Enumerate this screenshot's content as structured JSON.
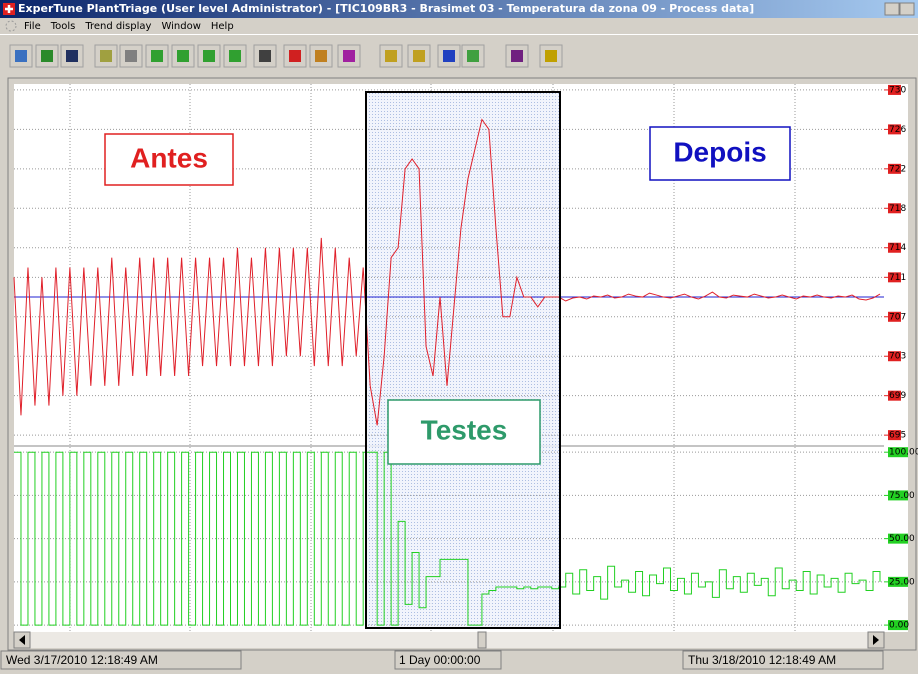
{
  "window": {
    "title": "ExperTune PlantTriage (User level Administrator) - [TIC109BR3 - Brasimet 03 - Temperatura da zona 09 - Process data]",
    "menu": [
      "File",
      "Tools",
      "Trend display",
      "Window",
      "Help"
    ]
  },
  "annotations": {
    "before": "Antes",
    "after": "Depois",
    "tests": "Testes"
  },
  "status": [
    "Wed 3/17/2010 12:18:49 AM",
    "1 Day 00:00:00",
    "Thu 3/18/2010 12:18:49 AM"
  ],
  "chart_data": [
    {
      "type": "line",
      "ylim": [
        694,
        730.5
      ],
      "yticks": [
        730,
        726,
        722,
        718,
        714,
        711,
        707,
        703,
        699,
        695
      ],
      "grid": true,
      "setpoint": 709,
      "setpoint_color": "#2020d0",
      "series": [
        {
          "color": "#e0202a",
          "values": [
            711,
            697,
            712,
            698,
            711,
            698,
            712,
            699,
            712,
            699,
            712,
            700,
            712,
            700,
            713,
            700,
            712,
            701,
            713,
            701,
            713,
            701,
            713,
            701,
            713,
            701,
            713,
            702,
            713,
            702,
            713,
            702,
            714,
            702,
            713,
            702,
            714,
            702,
            714,
            703,
            714,
            703,
            714,
            702,
            715,
            702,
            714,
            702,
            713,
            703,
            712,
            700,
            696,
            703,
            713,
            714,
            722,
            723,
            722,
            704,
            701,
            709,
            700,
            708,
            716,
            721,
            724,
            727,
            726,
            716,
            707,
            707,
            711,
            709,
            709,
            708,
            709,
            709,
            709,
            708.6,
            708.9,
            709,
            708.8,
            709.1,
            709,
            709.2,
            708.9,
            709,
            709.3,
            709.1,
            709,
            709.4,
            709.2,
            709,
            708.9,
            709.1,
            709.3,
            709,
            708.8,
            709.1,
            709.5,
            709,
            708.9,
            709.2,
            709.1,
            709,
            709.3,
            709.1,
            708.9,
            709,
            709.2,
            709,
            708.8,
            709.1,
            709,
            709.2,
            709,
            708.9,
            709.1,
            709,
            709.2,
            708.8,
            708.7,
            708.9,
            709.3
          ]
        }
      ]
    },
    {
      "type": "step",
      "ylim": [
        -4,
        103
      ],
      "yticks": [
        {
          "value": 100,
          "label": "100.00"
        },
        {
          "value": 75,
          "label": "75.00"
        },
        {
          "value": 50,
          "label": "50.00"
        },
        {
          "value": 25,
          "label": "25.00"
        },
        {
          "value": 0,
          "label": "0.00"
        }
      ],
      "grid": true,
      "series": [
        {
          "color": "#22d022",
          "values": [
            100,
            0,
            100,
            0,
            100,
            0,
            100,
            0,
            100,
            0,
            100,
            0,
            100,
            0,
            100,
            0,
            100,
            0,
            100,
            0,
            100,
            0,
            100,
            0,
            100,
            0,
            100,
            0,
            100,
            0,
            100,
            0,
            100,
            0,
            100,
            0,
            100,
            0,
            100,
            0,
            100,
            0,
            100,
            0,
            100,
            0,
            100,
            0,
            100,
            0,
            100,
            100,
            0,
            100,
            0,
            60,
            12,
            42,
            10,
            28,
            28,
            38,
            38,
            38,
            38,
            0,
            0,
            18,
            20,
            22,
            22,
            22,
            21,
            22,
            21,
            22,
            22,
            21,
            22,
            30,
            18,
            32,
            20,
            28,
            15,
            34,
            22,
            26,
            19,
            31,
            17,
            29,
            24,
            33,
            20,
            27,
            18,
            30,
            22,
            25,
            16,
            32,
            21,
            28,
            19,
            30,
            23,
            27,
            17,
            33,
            21,
            26,
            20,
            31,
            18,
            29,
            22,
            27,
            19,
            30,
            24,
            26,
            20,
            31,
            25
          ]
        }
      ]
    }
  ]
}
